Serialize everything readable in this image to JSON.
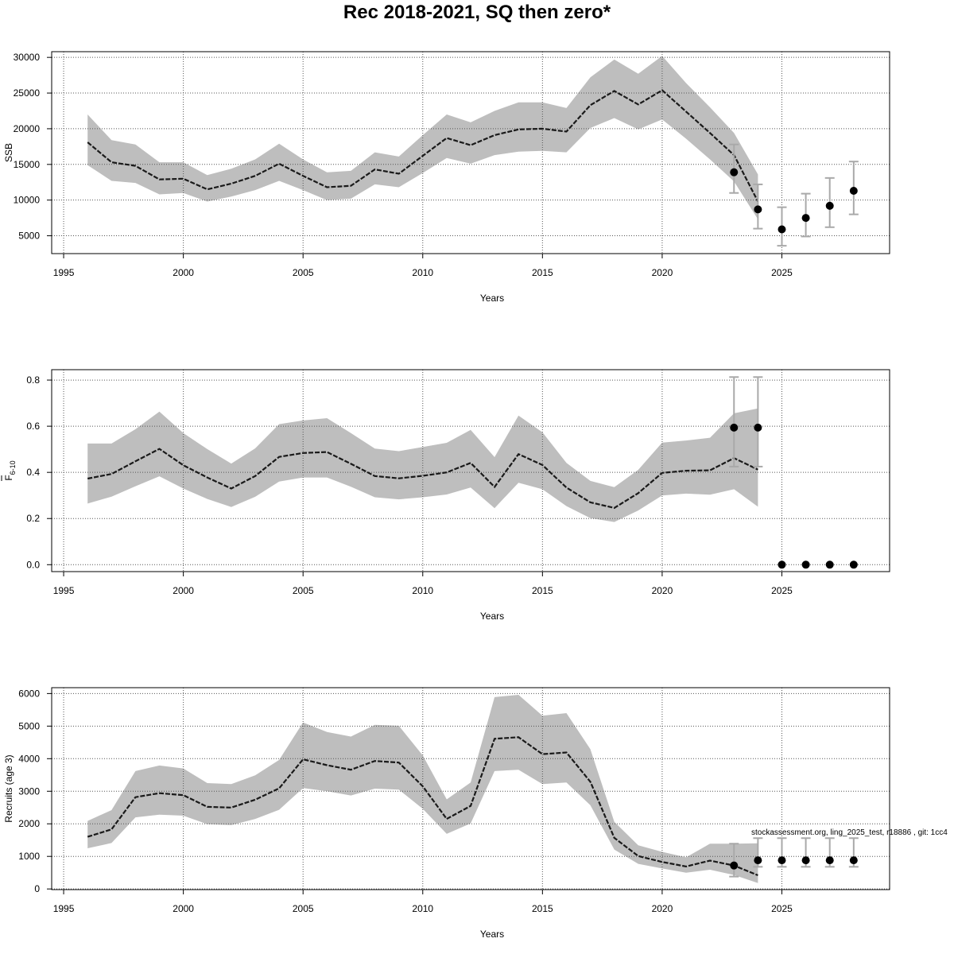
{
  "title": "Rec 2018-2021, SQ then zero*",
  "footnote": "stockassessment.org, ling_2025_test, r18886 , git: 1cc4",
  "colors": {
    "band": "#bebebe",
    "line": "#1a1a1a",
    "errorbar": "#a9a9a9",
    "point": "#000000",
    "grid": "#555555"
  },
  "chart_data": [
    {
      "type": "line",
      "title": "",
      "xlabel": "Years",
      "ylabel": "SSB",
      "ylabel_sub": "",
      "xlim": [
        1994.5,
        2029.5
      ],
      "ylim": [
        2500,
        30800
      ],
      "xticks": [
        1995,
        2000,
        2005,
        2010,
        2015,
        2020,
        2025
      ],
      "yticks": [
        5000,
        10000,
        15000,
        20000,
        25000,
        30000
      ],
      "grid": true,
      "series": [
        {
          "x": [
            1996,
            1997,
            1998,
            1999,
            2000,
            2001,
            2002,
            2003,
            2004,
            2005,
            2006,
            2007,
            2008,
            2009,
            2010,
            2011,
            2012,
            2013,
            2014,
            2015,
            2016,
            2017,
            2018,
            2019,
            2020,
            2021,
            2022,
            2023,
            2024
          ],
          "values": [
            18100,
            15300,
            14800,
            12900,
            13000,
            11500,
            12300,
            13400,
            15100,
            13400,
            11800,
            12000,
            14300,
            13700,
            16200,
            18700,
            17700,
            19100,
            19900,
            20000,
            19600,
            23300,
            25300,
            23400,
            25400,
            22400,
            19400,
            16300,
            9800
          ],
          "lower": [
            14900,
            12700,
            12400,
            10800,
            11000,
            9800,
            10500,
            11400,
            12700,
            11400,
            10000,
            10200,
            12200,
            11800,
            13800,
            15900,
            15100,
            16300,
            16800,
            16900,
            16700,
            20100,
            21500,
            19900,
            21300,
            18600,
            15700,
            12600,
            7300
          ],
          "upper": [
            22000,
            18400,
            17800,
            15300,
            15300,
            13500,
            14400,
            15700,
            17900,
            15700,
            13900,
            14100,
            16700,
            16100,
            19100,
            22000,
            20900,
            22500,
            23700,
            23700,
            22900,
            27200,
            29700,
            27700,
            30200,
            26400,
            23000,
            19400,
            13600
          ]
        }
      ],
      "forecast": {
        "x": [
          2023,
          2024,
          2025,
          2026,
          2027,
          2028
        ],
        "median": [
          13900,
          8700,
          5900,
          7500,
          9200,
          11300
        ],
        "low": [
          11000,
          6000,
          3600,
          4900,
          6200,
          8000
        ],
        "high": [
          17800,
          12200,
          9000,
          10900,
          13100,
          15400
        ]
      }
    },
    {
      "type": "line",
      "title": "",
      "xlabel": "Years",
      "ylabel": "F",
      "ylabel_sub": "6-10",
      "xlim": [
        1994.5,
        2029.5
      ],
      "ylim": [
        -0.03,
        0.845
      ],
      "xticks": [
        1995,
        2000,
        2005,
        2010,
        2015,
        2020,
        2025
      ],
      "yticks": [
        0.0,
        0.2,
        0.4,
        0.6,
        0.8
      ],
      "ytick_decimals": 1,
      "grid": true,
      "series": [
        {
          "x": [
            1996,
            1997,
            1998,
            1999,
            2000,
            2001,
            2002,
            2003,
            2004,
            2005,
            2006,
            2007,
            2008,
            2009,
            2010,
            2011,
            2012,
            2013,
            2014,
            2015,
            2016,
            2017,
            2018,
            2019,
            2020,
            2021,
            2022,
            2023,
            2024
          ],
          "values": [
            0.373,
            0.393,
            0.448,
            0.502,
            0.431,
            0.378,
            0.33,
            0.384,
            0.467,
            0.484,
            0.488,
            0.437,
            0.384,
            0.374,
            0.385,
            0.4,
            0.441,
            0.337,
            0.479,
            0.432,
            0.334,
            0.27,
            0.246,
            0.31,
            0.398,
            0.407,
            0.409,
            0.462,
            0.412
          ],
          "lower": [
            0.265,
            0.295,
            0.34,
            0.383,
            0.33,
            0.285,
            0.25,
            0.294,
            0.36,
            0.378,
            0.378,
            0.338,
            0.292,
            0.283,
            0.292,
            0.304,
            0.334,
            0.245,
            0.355,
            0.327,
            0.254,
            0.202,
            0.185,
            0.235,
            0.3,
            0.308,
            0.303,
            0.327,
            0.251
          ],
          "upper": [
            0.525,
            0.525,
            0.587,
            0.663,
            0.57,
            0.501,
            0.438,
            0.504,
            0.609,
            0.625,
            0.635,
            0.57,
            0.503,
            0.492,
            0.51,
            0.528,
            0.584,
            0.466,
            0.646,
            0.574,
            0.441,
            0.363,
            0.336,
            0.411,
            0.529,
            0.538,
            0.55,
            0.656,
            0.677
          ]
        }
      ],
      "forecast": {
        "x": [
          2023,
          2024,
          2025,
          2026,
          2027,
          2028
        ],
        "median": [
          0.594,
          0.594,
          0,
          0,
          0,
          0
        ],
        "low": [
          0.425,
          0.425,
          0,
          0,
          0,
          0
        ],
        "high": [
          0.813,
          0.813,
          0,
          0,
          0,
          0
        ]
      }
    },
    {
      "type": "line",
      "title": "",
      "xlabel": "Years",
      "ylabel": "Recruits (age 3)",
      "ylabel_sub": "",
      "xlim": [
        1994.5,
        2029.5
      ],
      "ylim": [
        -20,
        6180
      ],
      "xticks": [
        1995,
        2000,
        2005,
        2010,
        2015,
        2020,
        2025
      ],
      "yticks": [
        0,
        1000,
        2000,
        3000,
        4000,
        5000,
        6000
      ],
      "grid": true,
      "series": [
        {
          "x": [
            1996,
            1997,
            1998,
            1999,
            2000,
            2001,
            2002,
            2003,
            2004,
            2005,
            2006,
            2007,
            2008,
            2009,
            2010,
            2011,
            2012,
            2013,
            2014,
            2015,
            2016,
            2017,
            2018,
            2019,
            2020,
            2021,
            2022,
            2023,
            2024
          ],
          "values": [
            1600,
            1830,
            2820,
            2940,
            2880,
            2520,
            2500,
            2740,
            3090,
            3980,
            3800,
            3660,
            3930,
            3880,
            3150,
            2150,
            2550,
            4610,
            4660,
            4140,
            4190,
            3290,
            1570,
            1010,
            830,
            690,
            870,
            720,
            420
          ],
          "lower": [
            1250,
            1410,
            2200,
            2280,
            2250,
            1990,
            1960,
            2150,
            2430,
            3100,
            3000,
            2870,
            3080,
            3050,
            2460,
            1690,
            2010,
            3620,
            3660,
            3220,
            3270,
            2570,
            1210,
            770,
            630,
            500,
            590,
            430,
            180
          ],
          "upper": [
            2090,
            2420,
            3620,
            3790,
            3700,
            3250,
            3220,
            3490,
            3960,
            5110,
            4820,
            4680,
            5040,
            5010,
            4100,
            2750,
            3270,
            5890,
            5960,
            5320,
            5400,
            4290,
            2060,
            1340,
            1140,
            970,
            1390,
            1390,
            1400
          ]
        }
      ],
      "forecast": {
        "x": [
          2023,
          2024,
          2025,
          2026,
          2027,
          2028
        ],
        "median": [
          720,
          880,
          880,
          880,
          880,
          880
        ],
        "low": [
          380,
          680,
          680,
          680,
          680,
          680
        ],
        "high": [
          1390,
          1560,
          1560,
          1560,
          1560,
          1560
        ]
      }
    }
  ]
}
